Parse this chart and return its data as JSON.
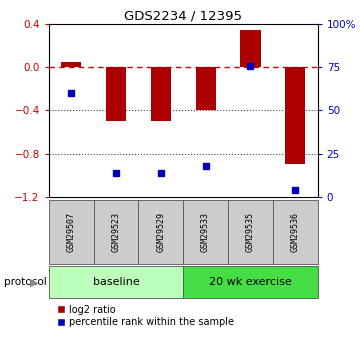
{
  "title": "GDS2234 / 12395",
  "samples": [
    "GSM29507",
    "GSM29523",
    "GSM29529",
    "GSM29533",
    "GSM29535",
    "GSM29536"
  ],
  "log2_ratio": [
    0.05,
    -0.5,
    -0.5,
    -0.4,
    0.35,
    -0.9
  ],
  "percentile_rank": [
    60,
    14,
    14,
    18,
    76,
    4
  ],
  "ylim_left": [
    -1.2,
    0.4
  ],
  "ylim_right": [
    0,
    100
  ],
  "yticks_left": [
    -1.2,
    -0.8,
    -0.4,
    0.0,
    0.4
  ],
  "yticks_right": [
    0,
    25,
    50,
    75,
    100
  ],
  "bar_color": "#aa0000",
  "dot_color": "#0000bb",
  "hline_color": "#cc0000",
  "dotted_line_color": "#444444",
  "protocol_groups": [
    {
      "label": "baseline",
      "start": 0,
      "end": 3,
      "color": "#bbffbb"
    },
    {
      "label": "20 wk exercise",
      "start": 3,
      "end": 6,
      "color": "#44dd44"
    }
  ],
  "legend_bar_label": "log2 ratio",
  "legend_dot_label": "percentile rank within the sample",
  "bar_width": 0.45,
  "protocol_label": "protocol",
  "background_color": "#ffffff",
  "sample_box_color": "#cccccc"
}
